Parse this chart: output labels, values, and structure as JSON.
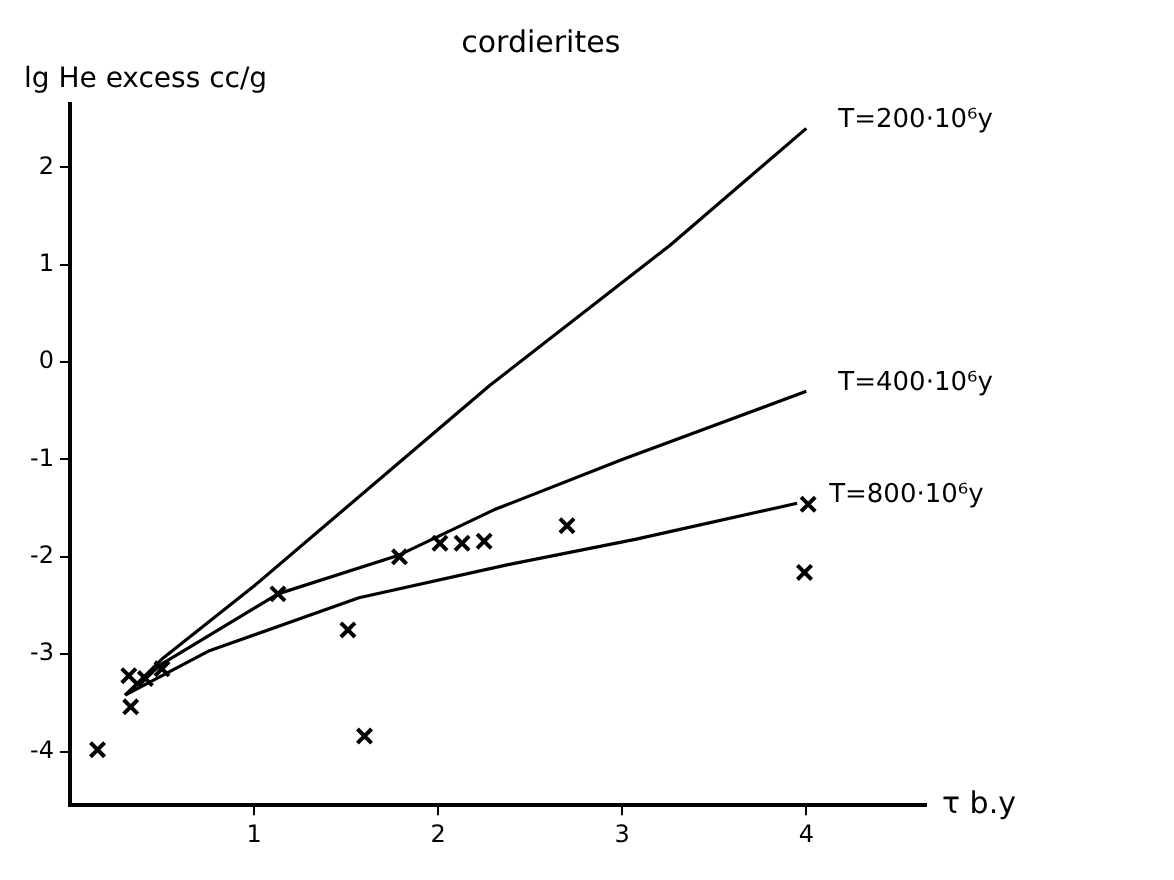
{
  "chart_data": {
    "type": "line",
    "title": "cordierites",
    "xlabel": "τ b.y",
    "ylabel": "lg He excess cc/g",
    "xlim": [
      0,
      4.65
    ],
    "ylim": [
      -4.55,
      2.65
    ],
    "xticks": [
      1,
      2,
      3,
      4
    ],
    "yticks": [
      -4,
      -3,
      -2,
      -1,
      0,
      1,
      2
    ],
    "grid": false,
    "legend": false,
    "series": [
      {
        "name": "T=200·10⁶y",
        "color": "#000000",
        "marker": "none",
        "x": [
          0.3,
          0.5,
          1,
          2.28,
          3.26,
          4.0
        ],
        "values": [
          -3.42,
          -3.05,
          -2.3,
          -0.24,
          1.2,
          2.4
        ]
      },
      {
        "name": "T=400·10⁶y",
        "color": "#000000",
        "marker": "none",
        "x": [
          0.3,
          0.5,
          1.13,
          1.79,
          2.3,
          3,
          4
        ],
        "values": [
          -3.42,
          -3.1,
          -2.38,
          -1.98,
          -1.52,
          -1.0,
          -0.3
        ]
      },
      {
        "name": "T=800·10⁶y",
        "color": "#000000",
        "marker": "none",
        "x": [
          0.3,
          0.75,
          1.57,
          2.38,
          3.07,
          3.95
        ],
        "values": [
          -3.42,
          -2.97,
          -2.42,
          -2.08,
          -1.82,
          -1.45
        ]
      },
      {
        "type": "scatter",
        "color": "#000000",
        "marker": "cross",
        "x": [
          0.15,
          0.32,
          0.41,
          0.5,
          0.33,
          1.13,
          1.51,
          1.6,
          1.79,
          2.01,
          2.13,
          2.25,
          2.7,
          4.01,
          3.99
        ],
        "values": [
          -3.98,
          -3.22,
          -3.25,
          -3.15,
          -3.54,
          -2.38,
          -2.75,
          -3.84,
          -2.0,
          -1.86,
          -1.86,
          -1.84,
          -1.68,
          -1.46,
          -2.16
        ]
      }
    ]
  }
}
